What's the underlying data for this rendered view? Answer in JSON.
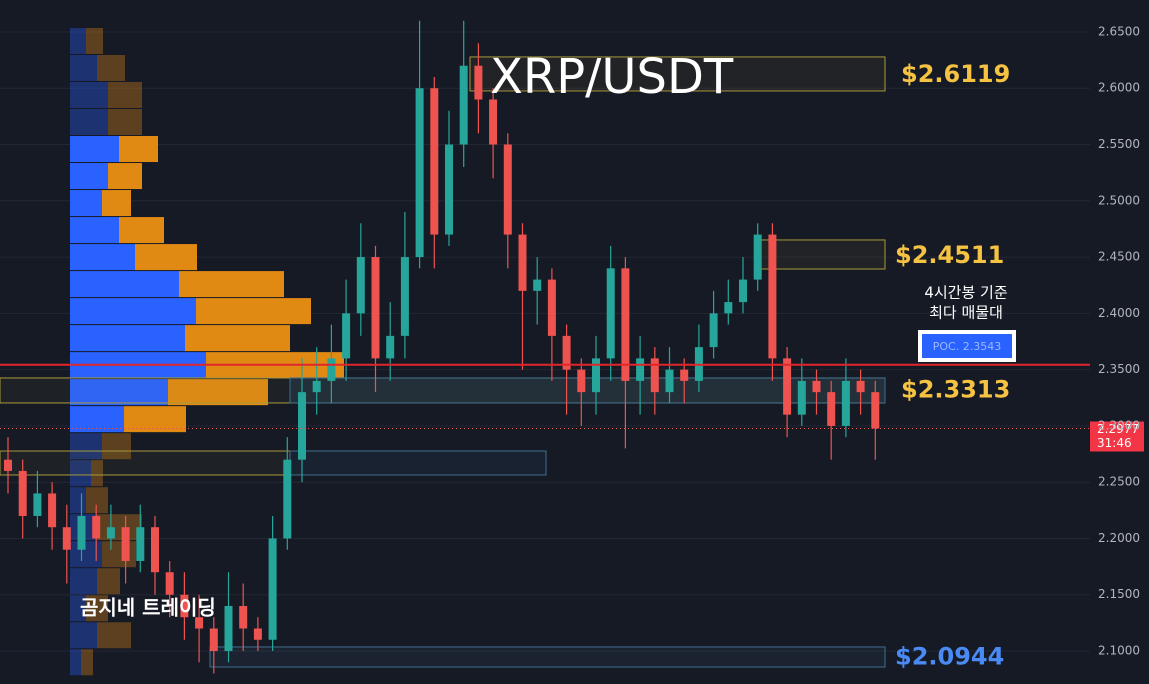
{
  "chart_data": {
    "type": "candlestick",
    "title": "XRP/USDT",
    "up_color": "#26a69a",
    "down_color": "#ef5350",
    "ylim": [
      2.0707,
      2.6784
    ],
    "yticks": [
      {
        "value": 2.1,
        "label": "2.1000"
      },
      {
        "value": 2.15,
        "label": "2.1500"
      },
      {
        "value": 2.2,
        "label": "2.2000"
      },
      {
        "value": 2.25,
        "label": "2.2500"
      },
      {
        "value": 2.3,
        "label": "2.3000"
      },
      {
        "value": 2.35,
        "label": "2.3500"
      },
      {
        "value": 2.4,
        "label": "2.4000"
      },
      {
        "value": 2.45,
        "label": "2.4500"
      },
      {
        "value": 2.5,
        "label": "2.5000"
      },
      {
        "value": 2.55,
        "label": "2.5500"
      },
      {
        "value": 2.6,
        "label": "2.6000"
      },
      {
        "value": 2.65,
        "label": "2.6500"
      }
    ],
    "grid": true,
    "series": {
      "open": [
        2.27,
        2.26,
        2.22,
        2.24,
        2.21,
        2.19,
        2.22,
        2.2,
        2.21,
        2.18,
        2.21,
        2.17,
        2.15,
        2.13,
        2.12,
        2.1,
        2.14,
        2.12,
        2.11,
        2.2,
        2.27,
        2.33,
        2.34,
        2.36,
        2.4,
        2.45,
        2.36,
        2.38,
        2.45,
        2.6,
        2.47,
        2.55,
        2.62,
        2.59,
        2.55,
        2.47,
        2.42,
        2.43,
        2.38,
        2.35,
        2.33,
        2.36,
        2.44,
        2.34,
        2.36,
        2.33,
        2.35,
        2.34,
        2.37,
        2.4,
        2.41,
        2.43,
        2.47,
        2.36,
        2.31,
        2.34,
        2.33,
        2.3,
        2.34,
        2.33
      ],
      "high": [
        2.29,
        2.27,
        2.26,
        2.25,
        2.23,
        2.24,
        2.23,
        2.23,
        2.22,
        2.23,
        2.22,
        2.18,
        2.17,
        2.15,
        2.13,
        2.17,
        2.16,
        2.13,
        2.22,
        2.29,
        2.36,
        2.37,
        2.39,
        2.43,
        2.48,
        2.46,
        2.41,
        2.49,
        2.66,
        2.61,
        2.58,
        2.66,
        2.64,
        2.6,
        2.56,
        2.48,
        2.45,
        2.44,
        2.39,
        2.36,
        2.38,
        2.46,
        2.45,
        2.38,
        2.37,
        2.37,
        2.36,
        2.39,
        2.42,
        2.43,
        2.45,
        2.48,
        2.48,
        2.37,
        2.36,
        2.35,
        2.34,
        2.36,
        2.35,
        2.34
      ],
      "low": [
        2.24,
        2.2,
        2.21,
        2.19,
        2.16,
        2.18,
        2.18,
        2.19,
        2.16,
        2.17,
        2.15,
        2.13,
        2.11,
        2.09,
        2.08,
        2.09,
        2.1,
        2.1,
        2.1,
        2.19,
        2.25,
        2.31,
        2.32,
        2.34,
        2.38,
        2.33,
        2.34,
        2.36,
        2.44,
        2.44,
        2.46,
        2.53,
        2.56,
        2.52,
        2.44,
        2.35,
        2.39,
        2.34,
        2.31,
        2.3,
        2.31,
        2.34,
        2.28,
        2.31,
        2.31,
        2.32,
        2.32,
        2.33,
        2.36,
        2.39,
        2.4,
        2.42,
        2.34,
        2.29,
        2.3,
        2.31,
        2.27,
        2.29,
        2.31,
        2.27
      ],
      "close": [
        2.26,
        2.22,
        2.24,
        2.21,
        2.19,
        2.22,
        2.2,
        2.21,
        2.18,
        2.21,
        2.17,
        2.15,
        2.13,
        2.12,
        2.1,
        2.14,
        2.12,
        2.11,
        2.2,
        2.27,
        2.33,
        2.34,
        2.36,
        2.4,
        2.45,
        2.36,
        2.38,
        2.45,
        2.6,
        2.47,
        2.55,
        2.62,
        2.59,
        2.55,
        2.47,
        2.42,
        2.43,
        2.38,
        2.35,
        2.33,
        2.36,
        2.44,
        2.34,
        2.36,
        2.33,
        2.35,
        2.34,
        2.37,
        2.4,
        2.41,
        2.43,
        2.47,
        2.36,
        2.31,
        2.34,
        2.33,
        2.3,
        2.34,
        2.33,
        2.2977
      ]
    },
    "profile": {
      "price": [
        2.654,
        2.63,
        2.606,
        2.582,
        2.558,
        2.534,
        2.51,
        2.486,
        2.462,
        2.438,
        2.414,
        2.39,
        2.366,
        2.342,
        2.318,
        2.294,
        2.27,
        2.246,
        2.222,
        2.198,
        2.174,
        2.15,
        2.126,
        2.102
      ],
      "buy": [
        16,
        27,
        38,
        38,
        49,
        38,
        32,
        49,
        65,
        109,
        126,
        115,
        136,
        98,
        54,
        32,
        21,
        16,
        27,
        32,
        27,
        16,
        27,
        11
      ],
      "sell": [
        17,
        28,
        34,
        34,
        39,
        34,
        29,
        45,
        62,
        105,
        115,
        105,
        138,
        100,
        62,
        29,
        12,
        22,
        45,
        34,
        23,
        22,
        34,
        12
      ],
      "value_area": [
        2.318,
        2.558
      ],
      "buy_color": "#2962ff",
      "sell_color": "#e08a14"
    },
    "zones": [
      {
        "label": "$2.6119",
        "value": 2.6119,
        "top": 2.6278,
        "bottom": 2.5976,
        "color": "#f5c242"
      },
      {
        "label": "$2.4511",
        "value": 2.4511,
        "top": 2.4652,
        "bottom": 2.4394,
        "color": "#f5c242"
      },
      {
        "label": "$2.3313",
        "value": 2.3313,
        "top": 2.3426,
        "bottom": 2.3204,
        "color": "#f5c242"
      },
      {
        "top": 2.2777,
        "bottom": 2.2564
      },
      {
        "label": "$2.0944",
        "value": 2.0944,
        "top": 2.1036,
        "bottom": 2.0858,
        "color": "#4a8af4"
      }
    ],
    "poc": {
      "label": "POC. 2.3543",
      "value": 2.3543,
      "note": [
        "4시간봉 기준",
        "최다 매물대"
      ]
    },
    "current": {
      "value": 2.2977,
      "label": "2.2977",
      "countdown": "31:46"
    },
    "watermark": "곰지네 트레이딩"
  }
}
